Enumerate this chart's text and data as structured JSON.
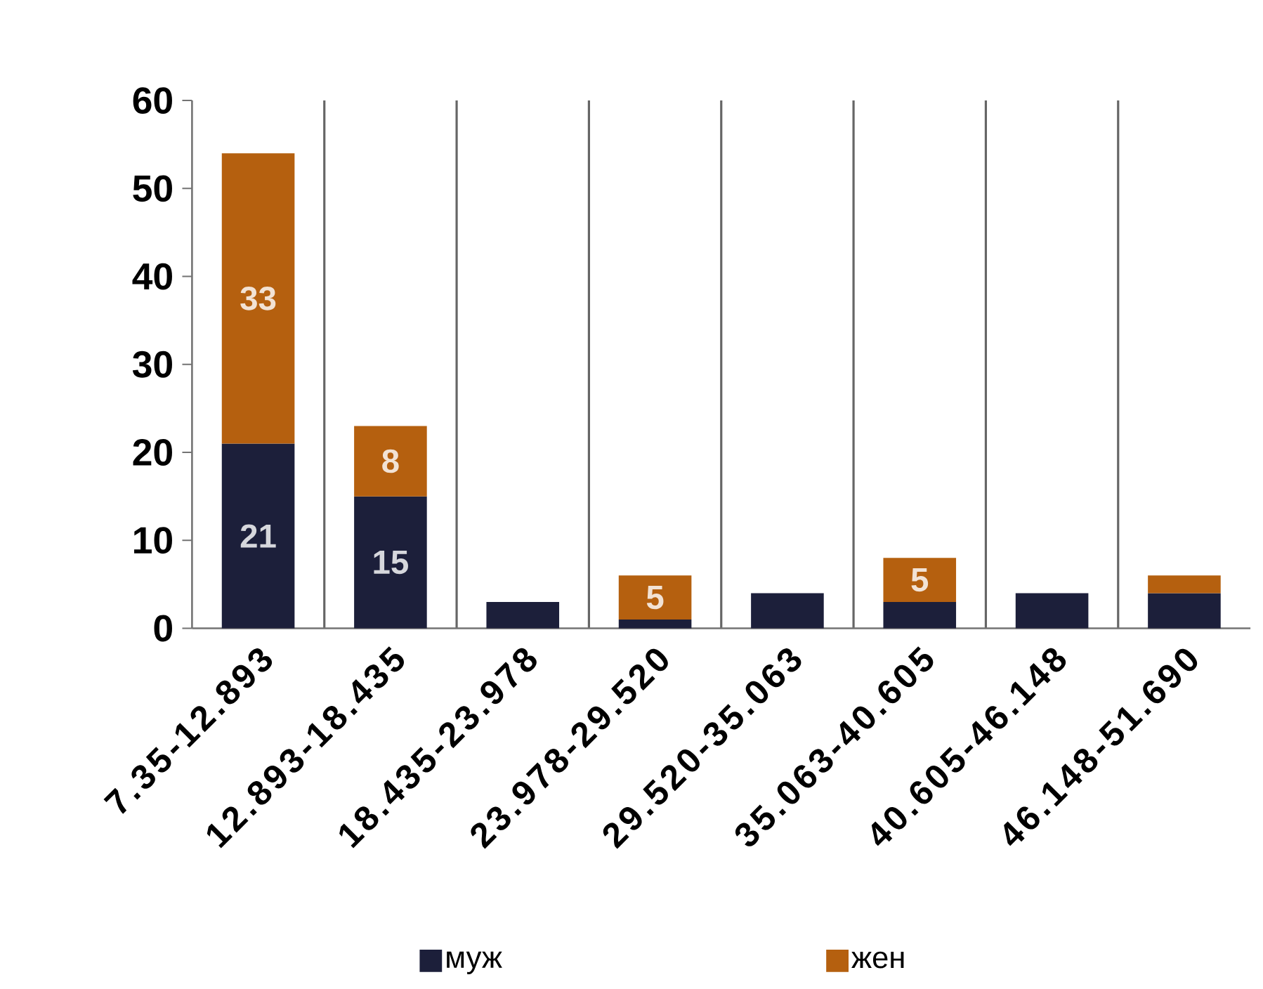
{
  "chart_data": {
    "type": "bar",
    "stacked": true,
    "categories": [
      "7.35-12.893",
      "12.893-18.435",
      "18.435-23.978",
      "23.978-29.520",
      "29.520-35.063",
      "35.063-40.605",
      "40.605-46.148",
      "46.148-51.690"
    ],
    "series": [
      {
        "name": "муж",
        "color": "#1c1f3a",
        "values": [
          21,
          15,
          3,
          1,
          4,
          3,
          4,
          4
        ],
        "value_labels": [
          "21",
          "15",
          null,
          null,
          null,
          null,
          null,
          null
        ]
      },
      {
        "name": "жен",
        "color": "#b5600f",
        "values": [
          33,
          8,
          null,
          5,
          null,
          5,
          null,
          2
        ],
        "value_labels": [
          "33",
          "8",
          null,
          "5",
          null,
          "5",
          null,
          null
        ]
      }
    ],
    "ylim": [
      0,
      60
    ],
    "yticks": [
      0,
      10,
      20,
      30,
      40,
      50,
      60
    ],
    "grid": "x",
    "legend": "bottom"
  }
}
